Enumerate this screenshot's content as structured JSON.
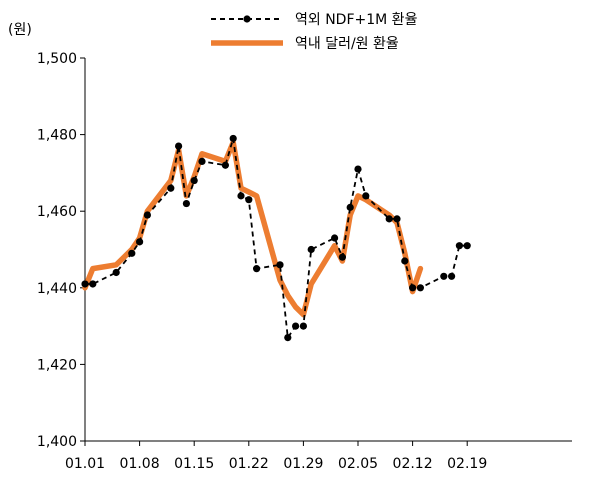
{
  "chart_data": {
    "type": "line",
    "unit_label": "(원)",
    "title": "",
    "xlabel": "",
    "ylabel": "",
    "ylim": [
      1400,
      1500
    ],
    "yticks": [
      1400,
      1420,
      1440,
      1460,
      1480,
      1500
    ],
    "ytick_labels": [
      "1,400",
      "1,420",
      "1,440",
      "1,460",
      "1,480",
      "1,500"
    ],
    "xticks": [
      "01.01",
      "01.08",
      "01.15",
      "01.22",
      "01.29",
      "02.05",
      "02.12",
      "02.19"
    ],
    "xlim": [
      "01.01",
      "02.20"
    ],
    "grid": false,
    "legend": "top",
    "series": [
      {
        "name": "역외 NDF+1M 환율",
        "style": "dashed-marker",
        "color": "#000000",
        "points": [
          [
            "01.01",
            1441
          ],
          [
            "01.02",
            1441
          ],
          [
            "01.05",
            1444
          ],
          [
            "01.07",
            1449
          ],
          [
            "01.08",
            1452
          ],
          [
            "01.09",
            1459
          ],
          [
            "01.12",
            1466
          ],
          [
            "01.13",
            1477
          ],
          [
            "01.14",
            1462
          ],
          [
            "01.15",
            1468
          ],
          [
            "01.16",
            1473
          ],
          [
            "01.19",
            1472
          ],
          [
            "01.20",
            1479
          ],
          [
            "01.21",
            1464
          ],
          [
            "01.22",
            1463
          ],
          [
            "01.23",
            1445
          ],
          [
            "01.26",
            1446
          ],
          [
            "01.27",
            1427
          ],
          [
            "01.28",
            1430
          ],
          [
            "01.29",
            1430
          ],
          [
            "01.30",
            1450
          ],
          [
            "02.02",
            1453
          ],
          [
            "02.03",
            1448
          ],
          [
            "02.04",
            1461
          ],
          [
            "02.05",
            1471
          ],
          [
            "02.06",
            1464
          ],
          [
            "02.09",
            1458
          ],
          [
            "02.10",
            1458
          ],
          [
            "02.11",
            1447
          ],
          [
            "02.12",
            1440
          ],
          [
            "02.13",
            1440
          ],
          [
            "02.16",
            1443
          ],
          [
            "02.17",
            1443
          ],
          [
            "02.18",
            1451
          ],
          [
            "02.19",
            1451
          ]
        ]
      },
      {
        "name": "역내 달러/원 환율",
        "style": "solid-thick",
        "color": "#ED7D31",
        "points": [
          [
            "01.01",
            1440
          ],
          [
            "01.02",
            1445
          ],
          [
            "01.05",
            1446
          ],
          [
            "01.06",
            1448
          ],
          [
            "01.07",
            1450
          ],
          [
            "01.08",
            1453
          ],
          [
            "01.09",
            1460
          ],
          [
            "01.12",
            1468
          ],
          [
            "01.13",
            1476
          ],
          [
            "01.14",
            1464
          ],
          [
            "01.15",
            1469
          ],
          [
            "01.16",
            1475
          ],
          [
            "01.19",
            1473
          ],
          [
            "01.20",
            1478
          ],
          [
            "01.21",
            1466
          ],
          [
            "01.22",
            1465
          ],
          [
            "01.23",
            1464
          ],
          [
            "01.26",
            1442
          ],
          [
            "01.27",
            1438
          ],
          [
            "01.28",
            1435
          ],
          [
            "01.29",
            1433
          ],
          [
            "01.30",
            1441
          ],
          [
            "02.02",
            1451
          ],
          [
            "02.03",
            1447
          ],
          [
            "02.04",
            1459
          ],
          [
            "02.05",
            1464
          ],
          [
            "02.06",
            1463
          ],
          [
            "02.09",
            1459
          ],
          [
            "02.10",
            1457
          ],
          [
            "02.11",
            1449
          ],
          [
            "02.12",
            1439
          ],
          [
            "02.13",
            1445
          ]
        ]
      }
    ]
  }
}
